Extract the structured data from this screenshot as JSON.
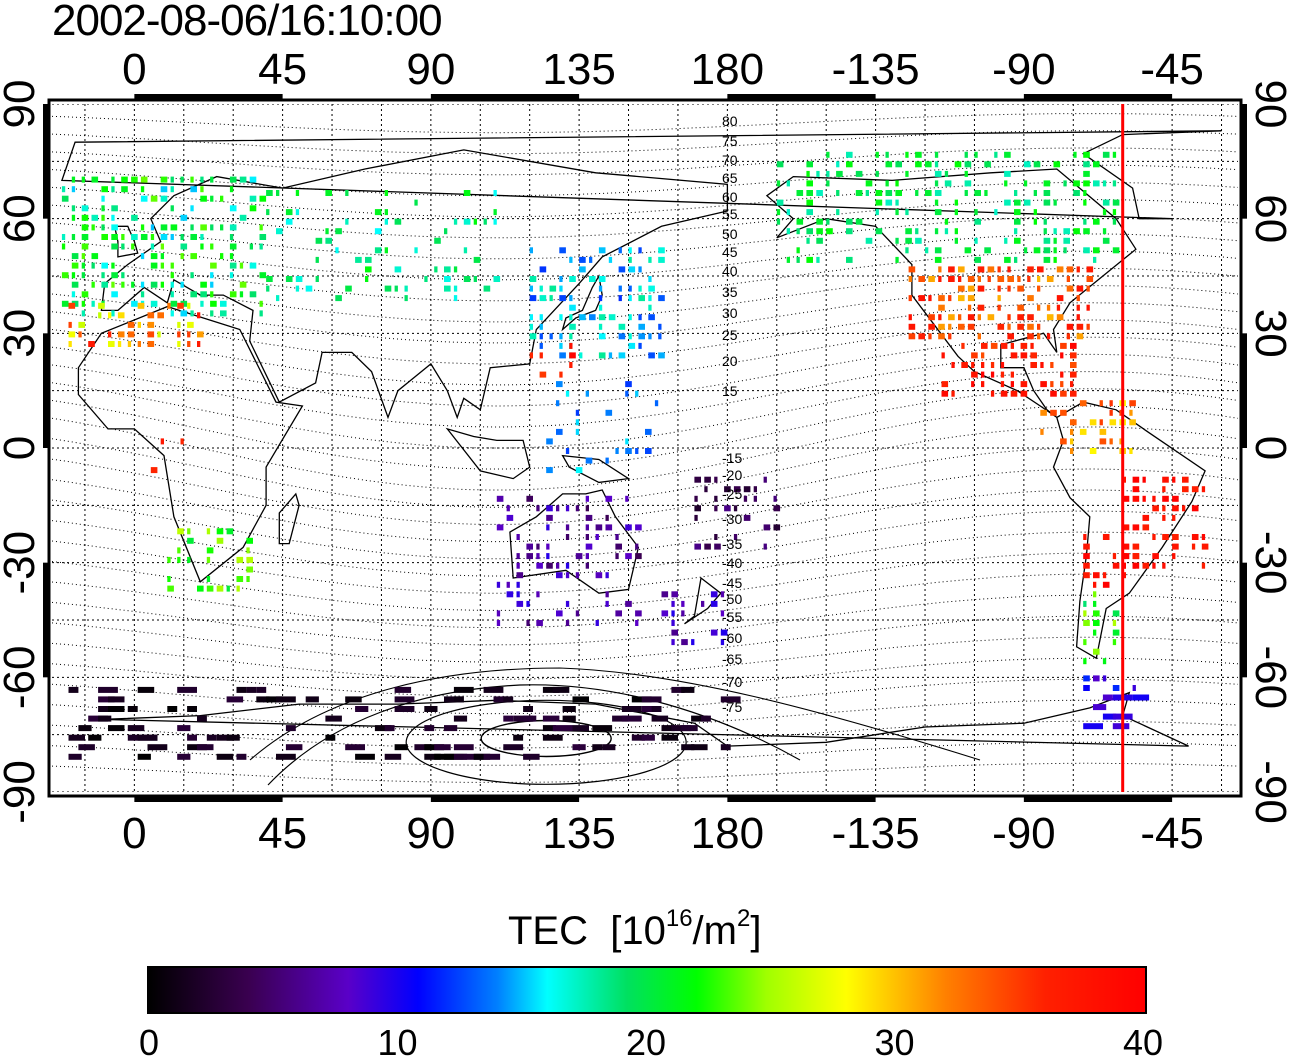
{
  "title": "2002-08-06/16:10:00",
  "map": {
    "lon_ticks": [
      "0",
      "45",
      "90",
      "135",
      "180",
      "-135",
      "-90",
      "-45"
    ],
    "lat_ticks": [
      "90",
      "60",
      "30",
      "0",
      "-30",
      "-60",
      "-90"
    ],
    "contour_labels_north": [
      "80",
      "75",
      "70",
      "65",
      "60",
      "55",
      "50",
      "45",
      "40",
      "35",
      "30",
      "25",
      "20",
      "15"
    ],
    "contour_labels_south": [
      "-15",
      "-20",
      "-25",
      "-30",
      "-35",
      "-40",
      "-45",
      "-50",
      "-55",
      "-60",
      "-65",
      "-70",
      "-75"
    ],
    "marker_line_lon": -60,
    "marker_color": "#ff0000"
  },
  "colorbar": {
    "label": "TEC",
    "unit_prefix": "[10",
    "unit_exp": "16",
    "unit_mid": "/m",
    "unit_exp2": "2",
    "unit_suffix": "]",
    "ticks": [
      "0",
      "10",
      "20",
      "30",
      "40"
    ],
    "range": [
      0,
      40
    ]
  }
}
